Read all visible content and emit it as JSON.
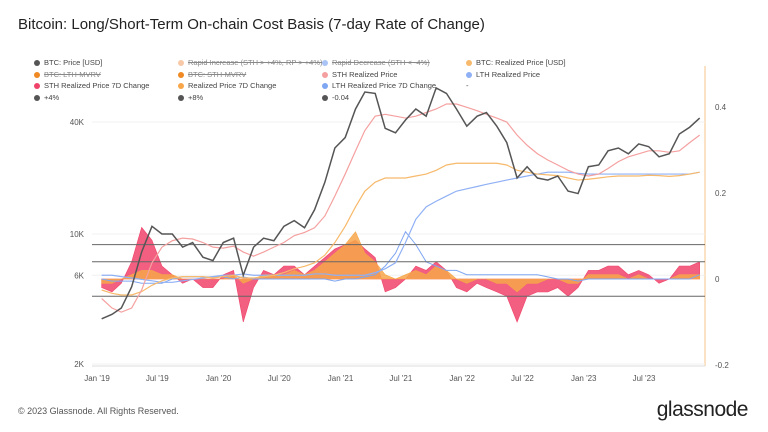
{
  "title": "Bitcoin: Long/Short-Term On-chain Cost Basis (7-day Rate of Change)",
  "footer": "© 2023 Glassnode. All Rights Reserved.",
  "logo": "glassnode",
  "legend": [
    {
      "label": "BTC: Price [USD]",
      "color": "#555555",
      "hidden": false
    },
    {
      "label": "Rapid Increase (STH > +4%, RP > +4%)",
      "color": "#f8c9a8",
      "hidden": true
    },
    {
      "label": "Rapid Decrease (STH < -4%)",
      "color": "#a9c4f5",
      "hidden": true
    },
    {
      "label": "BTC: Realized Price [USD]",
      "color": "#f7b96b",
      "hidden": false
    },
    {
      "label": "BTC: LTH-MVRV",
      "color": "#f08a24",
      "hidden": true
    },
    {
      "label": "BTC: STH-MVRV",
      "color": "#f08a24",
      "hidden": true
    },
    {
      "label": "STH Realized Price",
      "color": "#f5a0a0",
      "hidden": false
    },
    {
      "label": "LTH Realized Price",
      "color": "#8fb0f5",
      "hidden": false
    },
    {
      "label": "STH Realized Price 7D Change",
      "color": "#f0436a",
      "hidden": false
    },
    {
      "label": "Realized Price 7D Change",
      "color": "#f7a64a",
      "hidden": false
    },
    {
      "label": "LTH Realized Price 7D Change",
      "color": "#7fa6f2",
      "hidden": false
    },
    {
      "label": "-",
      "color": "",
      "hidden": false
    },
    {
      "label": "+4%",
      "color": "#555555",
      "hidden": false
    },
    {
      "label": "+8%",
      "color": "#555555",
      "hidden": false
    },
    {
      "label": "-0.04",
      "color": "#555555",
      "hidden": false
    }
  ],
  "chart_data": {
    "type": "line",
    "title": "Bitcoin: Long/Short-Term On-chain Cost Basis (7-day Rate of Change)",
    "x_ticks": [
      "Jan '19",
      "Jul '19",
      "Jan '20",
      "Jul '20",
      "Jan '21",
      "Jul '21",
      "Jan '22",
      "Jul '22",
      "Jan '23",
      "Jul '23"
    ],
    "y_left": {
      "scale": "log",
      "ticks": [
        "2K",
        "6K",
        "10K",
        "40K"
      ],
      "tick_values": [
        2000,
        6000,
        10000,
        40000
      ],
      "range": [
        2000,
        100000
      ]
    },
    "y_right": {
      "scale": "linear",
      "ticks": [
        "-0.2",
        "0",
        "0.2",
        "0.4"
      ],
      "tick_values": [
        -0.2,
        0,
        0.2,
        0.4
      ],
      "range": [
        -0.2,
        0.5
      ]
    },
    "x": [
      "2019-01",
      "2019-02",
      "2019-03",
      "2019-04",
      "2019-05",
      "2019-06",
      "2019-07",
      "2019-08",
      "2019-09",
      "2019-10",
      "2019-11",
      "2019-12",
      "2020-01",
      "2020-02",
      "2020-03",
      "2020-04",
      "2020-05",
      "2020-06",
      "2020-07",
      "2020-08",
      "2020-09",
      "2020-10",
      "2020-11",
      "2020-12",
      "2021-01",
      "2021-02",
      "2021-03",
      "2021-04",
      "2021-05",
      "2021-06",
      "2021-07",
      "2021-08",
      "2021-09",
      "2021-10",
      "2021-11",
      "2021-12",
      "2022-01",
      "2022-02",
      "2022-03",
      "2022-04",
      "2022-05",
      "2022-06",
      "2022-07",
      "2022-08",
      "2022-09",
      "2022-10",
      "2022-11",
      "2022-12",
      "2023-01",
      "2023-02",
      "2023-03",
      "2023-04",
      "2023-05",
      "2023-06",
      "2023-07",
      "2023-08",
      "2023-09",
      "2023-10",
      "2023-11",
      "2023-12"
    ],
    "series": [
      {
        "name": "BTC: Price [USD]",
        "axis": "left",
        "color": "#555555",
        "values": [
          3500,
          3700,
          4000,
          5200,
          8000,
          11000,
          10000,
          10000,
          8500,
          9000,
          7500,
          7200,
          9000,
          9500,
          6000,
          8500,
          9500,
          9200,
          11000,
          11800,
          10800,
          13500,
          19000,
          29000,
          33000,
          47000,
          58000,
          57000,
          37000,
          35000,
          41000,
          47000,
          43000,
          61000,
          57000,
          47000,
          38000,
          43000,
          45000,
          38000,
          31000,
          20000,
          23000,
          20000,
          19500,
          20500,
          17000,
          16500,
          23000,
          23500,
          28000,
          29000,
          27000,
          30500,
          29500,
          26000,
          27000,
          34500,
          37500,
          42000
        ]
      },
      {
        "name": "BTC: Realized Price [USD]",
        "axis": "left",
        "color": "#f7b96b",
        "values": [
          5000,
          4800,
          4700,
          4700,
          4900,
          5300,
          5600,
          5800,
          5900,
          5900,
          5900,
          5800,
          5900,
          6000,
          5800,
          5800,
          5900,
          6000,
          6200,
          6500,
          6700,
          7000,
          7700,
          9000,
          11000,
          14000,
          17000,
          19000,
          20000,
          20000,
          20000,
          20500,
          21000,
          22000,
          23500,
          24000,
          24000,
          24000,
          24000,
          24000,
          23500,
          22000,
          21500,
          21000,
          20800,
          20600,
          20000,
          19500,
          19700,
          20000,
          20300,
          20500,
          20500,
          20500,
          20700,
          20600,
          20400,
          20600,
          21000,
          21500
        ]
      },
      {
        "name": "STH Realized Price",
        "axis": "left",
        "color": "#f5a0a0",
        "values": [
          4500,
          4000,
          3800,
          4000,
          5000,
          7000,
          8500,
          9200,
          9500,
          9400,
          9000,
          8500,
          8400,
          8600,
          8000,
          7600,
          8000,
          8500,
          9000,
          9800,
          10200,
          10800,
          12500,
          16000,
          21000,
          28000,
          36000,
          43000,
          44000,
          43000,
          42000,
          43000,
          45000,
          47000,
          50000,
          50000,
          48000,
          46000,
          44000,
          42000,
          40000,
          34000,
          30000,
          27000,
          25000,
          23500,
          22000,
          21000,
          20500,
          21000,
          22500,
          24500,
          26000,
          27000,
          28000,
          28000,
          27500,
          28000,
          31000,
          34000
        ]
      },
      {
        "name": "LTH Realized Price",
        "axis": "left",
        "color": "#8fb0f5",
        "values": [
          6000,
          6000,
          5900,
          5800,
          5700,
          5600,
          5500,
          5500,
          5600,
          5700,
          5800,
          5900,
          6000,
          6000,
          6100,
          6000,
          6000,
          6000,
          6000,
          6000,
          6000,
          6100,
          6100,
          6000,
          6000,
          6000,
          6000,
          6200,
          6500,
          7000,
          9000,
          12000,
          14000,
          15000,
          16000,
          17000,
          17500,
          18000,
          18500,
          19000,
          19500,
          20000,
          20500,
          21000,
          21500,
          21500,
          21500,
          21200,
          21000,
          21000,
          21000,
          21000,
          21000,
          21000,
          21000,
          21000,
          21000,
          21000,
          21000,
          21500
        ]
      },
      {
        "name": "STH Realized Price 7D Change",
        "axis": "right",
        "color": "#f0436a",
        "values": [
          -0.02,
          -0.03,
          -0.01,
          0.04,
          0.12,
          0.09,
          0.03,
          0.01,
          -0.01,
          0.0,
          -0.02,
          -0.02,
          0.01,
          0.02,
          -0.1,
          -0.02,
          0.02,
          0.01,
          0.03,
          0.03,
          0.01,
          0.03,
          0.05,
          0.07,
          0.08,
          0.09,
          0.07,
          0.05,
          -0.03,
          -0.02,
          0.0,
          0.03,
          0.02,
          0.04,
          0.02,
          -0.02,
          -0.03,
          -0.01,
          -0.02,
          -0.03,
          -0.04,
          -0.1,
          -0.04,
          -0.03,
          -0.03,
          -0.02,
          -0.04,
          -0.02,
          0.02,
          0.02,
          0.03,
          0.03,
          0.01,
          0.02,
          0.01,
          -0.01,
          0.0,
          0.03,
          0.03,
          0.04
        ]
      },
      {
        "name": "Realized Price 7D Change",
        "axis": "right",
        "color": "#f7a64a",
        "values": [
          -0.01,
          -0.01,
          0.0,
          0.01,
          0.02,
          0.02,
          0.01,
          0.01,
          0.0,
          0.0,
          0.0,
          0.0,
          0.0,
          0.01,
          -0.01,
          0.0,
          0.01,
          0.01,
          0.01,
          0.02,
          0.01,
          0.02,
          0.04,
          0.06,
          0.08,
          0.11,
          0.06,
          0.04,
          0.01,
          0.0,
          0.01,
          0.02,
          0.01,
          0.03,
          0.02,
          0.0,
          -0.01,
          0.0,
          0.0,
          -0.01,
          -0.01,
          -0.03,
          -0.01,
          -0.01,
          0.0,
          0.0,
          -0.01,
          -0.01,
          0.01,
          0.01,
          0.01,
          0.01,
          0.0,
          0.01,
          0.0,
          0.0,
          0.0,
          0.01,
          0.01,
          0.01
        ]
      },
      {
        "name": "LTH Realized Price 7D Change",
        "axis": "right",
        "color": "#7fa6f2",
        "values": [
          0.0,
          -0.005,
          -0.005,
          -0.005,
          -0.01,
          -0.01,
          -0.01,
          0.0,
          0.005,
          0.005,
          0.005,
          0.005,
          0.005,
          0.0,
          0.005,
          0.0,
          0.0,
          0.0,
          0.0,
          0.0,
          0.0,
          0.0,
          0.0,
          -0.005,
          0.0,
          0.0,
          0.005,
          0.01,
          0.03,
          0.06,
          0.11,
          0.08,
          0.04,
          0.03,
          0.02,
          0.02,
          0.01,
          0.01,
          0.01,
          0.01,
          0.01,
          0.01,
          0.01,
          0.01,
          0.005,
          0.0,
          0.0,
          -0.005,
          0.0,
          0.0,
          0.0,
          0.0,
          0.0,
          0.0,
          0.0,
          0.0,
          0.0,
          0.0,
          0.0,
          0.01
        ]
      }
    ],
    "thresholds": [
      {
        "label": "+4%",
        "value": 0.04
      },
      {
        "label": "+8%",
        "value": 0.08
      },
      {
        "label": "-0.04",
        "value": -0.04
      }
    ]
  }
}
